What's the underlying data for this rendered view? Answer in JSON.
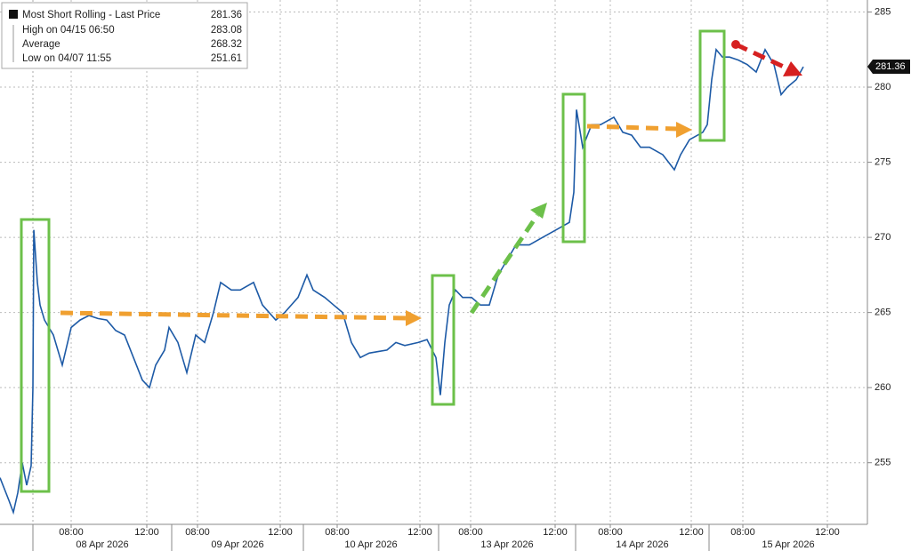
{
  "chart_data": {
    "type": "line",
    "legend": [
      {
        "name": "Most Short Rolling - Last Price",
        "value": "281.36"
      },
      {
        "name": "High on 04/15 06:50",
        "value": "283.08"
      },
      {
        "name": "Average",
        "value": "268.32"
      },
      {
        "name": "Low on 04/07 11:55",
        "value": "251.61"
      }
    ],
    "series": [
      {
        "name": "Most Short Rolling - Last Price",
        "color": "#1d5aa6",
        "x": [
          0,
          1,
          1.5,
          2,
          2.5,
          3,
          3.5,
          3.7,
          3.8,
          4.2,
          4.5,
          5,
          6,
          7,
          8,
          9,
          10,
          11,
          12,
          13,
          14,
          15,
          16,
          16.8,
          17.5,
          18.5,
          19,
          20,
          21,
          22,
          23,
          24,
          24.8,
          26,
          27,
          28.5,
          29.5,
          31,
          32,
          33.5,
          34.5,
          35.2,
          36.5,
          37.5,
          38.5,
          39.5,
          40.5,
          41.5,
          42.5,
          43.5,
          44.5,
          45.5,
          47,
          48,
          49,
          49.5,
          50,
          50.5,
          51.2,
          52,
          53,
          54,
          55,
          56,
          57,
          58,
          59.5,
          61,
          62.5,
          64,
          64.5,
          64.8,
          65.5,
          66.5,
          67.5,
          69,
          70,
          71,
          72,
          73,
          74.5,
          75.8,
          76.5,
          77.5,
          79,
          79.5,
          80,
          80.5,
          81.2,
          82,
          83,
          84,
          85,
          86,
          87,
          87.8,
          88.5,
          89.5,
          90.3
        ],
        "values": [
          254,
          252.5,
          251.7,
          253,
          255,
          253.5,
          254.8,
          260,
          270.5,
          267,
          265.5,
          264.5,
          263.5,
          261.5,
          264,
          264.5,
          264.8,
          264.6,
          264.5,
          263.8,
          263.5,
          262,
          260.5,
          260,
          261.5,
          262.5,
          264,
          263,
          261,
          263.5,
          263,
          265,
          267,
          266.5,
          266.5,
          267,
          265.5,
          264.5,
          265,
          266,
          267.5,
          266.5,
          266,
          265.5,
          265,
          263,
          262,
          262.3,
          262.4,
          262.5,
          263,
          262.8,
          263,
          263.2,
          262,
          259.5,
          263,
          265.5,
          266.5,
          266,
          266,
          265.5,
          265.5,
          267.5,
          268.5,
          269.5,
          269.5,
          270,
          270.5,
          271,
          273,
          278.5,
          276,
          277.5,
          277.5,
          278,
          277,
          276.8,
          276,
          276,
          275.5,
          274.5,
          275.5,
          276.5,
          277,
          277.5,
          280.5,
          282.5,
          282,
          282,
          281.8,
          281.5,
          281,
          282.5,
          281.5,
          279.5,
          280,
          280.5,
          281.36
        ]
      }
    ],
    "xlim": [
      0,
      97.5
    ],
    "ylim": [
      250.9,
      285.8
    ],
    "yticks": [
      255,
      260,
      265,
      270,
      275,
      280,
      285
    ],
    "xticks": [
      {
        "value": 8,
        "label": "08:00"
      },
      {
        "value": 16.5,
        "label": "12:00"
      },
      {
        "value": 22.2,
        "label": "08:00"
      },
      {
        "value": 31.5,
        "label": "12:00"
      },
      {
        "value": 37.9,
        "label": "08:00"
      },
      {
        "value": 47.2,
        "label": "12:00"
      },
      {
        "value": 52.9,
        "label": "08:00"
      },
      {
        "value": 62.4,
        "label": "12:00"
      },
      {
        "value": 68.6,
        "label": "08:00"
      },
      {
        "value": 77.7,
        "label": "12:00"
      },
      {
        "value": 83.5,
        "label": "08:00"
      },
      {
        "value": 93,
        "label": "12:00"
      }
    ],
    "day_breaks": [
      3.7,
      19.3,
      34.1,
      49.3,
      64.7,
      79.7
    ],
    "days": [
      "08 Apr 2026",
      "09 Apr 2026",
      "10 Apr 2026",
      "13 Apr 2026",
      "14 Apr 2026",
      "15 Apr 2026"
    ],
    "grid": true
  }
}
